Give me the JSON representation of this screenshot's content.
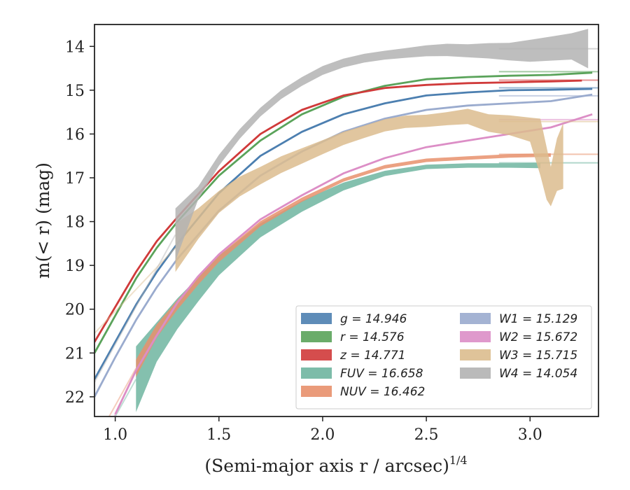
{
  "chart_data": {
    "type": "line",
    "xlabel": "(Semi-major axis r / arcsec)",
    "xlabel_sup": "1/4",
    "ylabel": "m(< r) (mag)",
    "xlim": [
      0.9,
      3.33
    ],
    "ylim": [
      22.45,
      13.5
    ],
    "y_inverted": true,
    "xticks": [
      1.0,
      1.5,
      2.0,
      2.5,
      3.0
    ],
    "xtick_labels": [
      "1.0",
      "1.5",
      "2.0",
      "2.5",
      "3.0"
    ],
    "yticks": [
      14,
      15,
      16,
      17,
      18,
      19,
      20,
      21,
      22
    ],
    "ytick_labels": [
      "14",
      "15",
      "16",
      "17",
      "18",
      "19",
      "20",
      "21",
      "22"
    ],
    "legend_position": "lower-right",
    "series": [
      {
        "name": "g = 14.946",
        "color": "#4c7fb0",
        "asymptote": 14.946,
        "band": false,
        "x": [
          0.9,
          1.0,
          1.1,
          1.2,
          1.3,
          1.5,
          1.7,
          1.9,
          2.1,
          2.3,
          2.5,
          2.7,
          2.9,
          3.1,
          3.3
        ],
        "y": [
          21.6,
          20.75,
          19.9,
          19.15,
          18.5,
          17.35,
          16.5,
          15.95,
          15.55,
          15.3,
          15.12,
          15.05,
          15.0,
          14.99,
          14.97
        ]
      },
      {
        "name": "r = 14.576",
        "color": "#5aa35a",
        "asymptote": 14.576,
        "band": false,
        "x": [
          0.9,
          1.0,
          1.1,
          1.2,
          1.3,
          1.5,
          1.7,
          1.9,
          2.1,
          2.3,
          2.5,
          2.7,
          2.9,
          3.1,
          3.3
        ],
        "y": [
          21.0,
          20.15,
          19.3,
          18.6,
          18.0,
          16.95,
          16.15,
          15.55,
          15.15,
          14.9,
          14.75,
          14.7,
          14.67,
          14.65,
          14.6
        ]
      },
      {
        "name": "z = 14.771",
        "color": "#d03a3a",
        "asymptote": 14.771,
        "band": false,
        "x": [
          0.9,
          1.0,
          1.1,
          1.2,
          1.3,
          1.5,
          1.7,
          1.9,
          2.1,
          2.3,
          2.5,
          2.7,
          2.9,
          3.1,
          3.25
        ],
        "y": [
          20.75,
          19.95,
          19.15,
          18.45,
          17.9,
          16.85,
          16.0,
          15.45,
          15.12,
          14.95,
          14.88,
          14.84,
          14.82,
          14.8,
          14.78
        ]
      },
      {
        "name": "FUV = 16.658",
        "color": "#6fb5a0",
        "asymptote": 16.658,
        "band": true,
        "x": [
          1.1,
          1.2,
          1.3,
          1.4,
          1.5,
          1.7,
          1.9,
          2.1,
          2.3,
          2.5,
          2.7,
          2.9,
          3.05
        ],
        "y": [
          21.6,
          20.75,
          20.1,
          19.55,
          19.0,
          18.2,
          17.65,
          17.2,
          16.9,
          16.75,
          16.72,
          16.72,
          16.72
        ],
        "band_width": [
          1.5,
          0.9,
          0.7,
          0.55,
          0.45,
          0.32,
          0.25,
          0.18,
          0.12,
          0.1,
          0.1,
          0.1,
          0.12
        ]
      },
      {
        "name": "NUV = 16.462",
        "color": "#e8906c",
        "asymptote": 16.462,
        "band": true,
        "x": [
          1.1,
          1.2,
          1.3,
          1.4,
          1.5,
          1.7,
          1.9,
          2.1,
          2.3,
          2.5,
          2.7,
          2.9,
          3.1
        ],
        "y": [
          21.35,
          20.5,
          19.9,
          19.35,
          18.85,
          18.05,
          17.5,
          17.05,
          16.75,
          16.6,
          16.55,
          16.5,
          16.48
        ],
        "band_width": [
          0.4,
          0.3,
          0.22,
          0.18,
          0.15,
          0.12,
          0.1,
          0.08,
          0.08,
          0.08,
          0.08,
          0.08,
          0.08
        ]
      },
      {
        "name": "W1 = 15.129",
        "color": "#9aabce",
        "asymptote": 15.129,
        "band": false,
        "x": [
          0.9,
          1.0,
          1.1,
          1.2,
          1.3,
          1.5,
          1.7,
          1.9,
          2.1,
          2.3,
          2.5,
          2.7,
          2.9,
          3.1,
          3.3
        ],
        "y": [
          22.0,
          21.1,
          20.25,
          19.5,
          18.85,
          17.75,
          16.95,
          16.4,
          15.95,
          15.65,
          15.45,
          15.35,
          15.3,
          15.25,
          15.1
        ]
      },
      {
        "name": "W2 = 15.672",
        "color": "#dc8ec6",
        "asymptote": 15.672,
        "band": false,
        "x": [
          1.0,
          1.1,
          1.2,
          1.3,
          1.4,
          1.5,
          1.7,
          1.9,
          2.1,
          2.3,
          2.5,
          2.7,
          2.9,
          3.1,
          3.3
        ],
        "y": [
          22.4,
          21.4,
          20.6,
          19.85,
          19.25,
          18.75,
          17.95,
          17.4,
          16.9,
          16.55,
          16.3,
          16.15,
          16.0,
          15.85,
          15.55
        ]
      },
      {
        "name": "W3 = 15.715",
        "color": "#dcbc8e",
        "asymptote": 15.715,
        "band": true,
        "x": [
          1.29,
          1.4,
          1.5,
          1.6,
          1.7,
          1.8,
          1.9,
          2.0,
          2.1,
          2.2,
          2.3,
          2.4,
          2.5,
          2.6,
          2.7,
          2.8,
          2.9,
          3.0,
          3.05,
          3.08,
          3.1,
          3.13,
          3.16
        ],
        "y": [
          18.6,
          18.05,
          17.55,
          17.2,
          16.95,
          16.7,
          16.5,
          16.3,
          16.1,
          15.95,
          15.8,
          15.72,
          15.7,
          15.65,
          15.6,
          15.75,
          15.8,
          15.9,
          16.3,
          16.9,
          17.2,
          16.7,
          16.5
        ],
        "band_width": [
          1.1,
          0.7,
          0.5,
          0.45,
          0.4,
          0.38,
          0.35,
          0.32,
          0.3,
          0.28,
          0.28,
          0.28,
          0.28,
          0.3,
          0.35,
          0.4,
          0.45,
          0.55,
          1.3,
          1.2,
          0.9,
          1.2,
          1.5
        ]
      },
      {
        "name": "W4 = 14.054",
        "color": "#b3b3b3",
        "asymptote": 14.054,
        "band": true,
        "x": [
          1.29,
          1.4,
          1.5,
          1.6,
          1.7,
          1.8,
          1.9,
          2.0,
          2.1,
          2.2,
          2.3,
          2.4,
          2.5,
          2.6,
          2.7,
          2.8,
          2.9,
          3.0,
          3.1,
          3.2,
          3.28
        ],
        "y": [
          18.3,
          17.35,
          16.6,
          16.0,
          15.5,
          15.1,
          14.8,
          14.55,
          14.38,
          14.27,
          14.2,
          14.15,
          14.1,
          14.08,
          14.1,
          14.1,
          14.12,
          14.1,
          14.05,
          14.0,
          14.05
        ],
        "band_width": [
          1.2,
          0.3,
          0.25,
          0.22,
          0.2,
          0.2,
          0.2,
          0.2,
          0.2,
          0.2,
          0.2,
          0.22,
          0.25,
          0.28,
          0.3,
          0.35,
          0.4,
          0.5,
          0.55,
          0.6,
          0.9
        ]
      }
    ]
  }
}
